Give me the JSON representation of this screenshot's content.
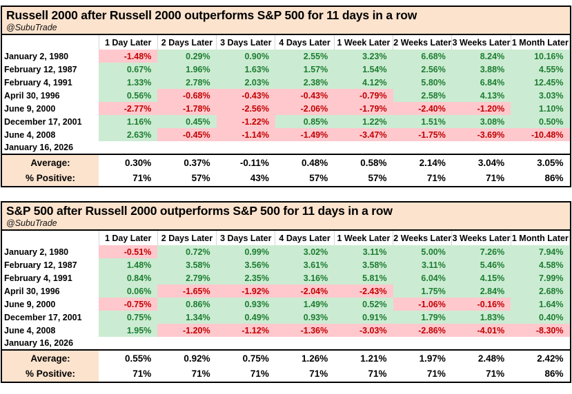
{
  "palette": {
    "panel_header_bg": "#fce3cd",
    "summary_label_bg": "#fce3cd",
    "positive_bg": "#cbecd2",
    "positive_text": "#1d7c31",
    "negative_bg": "#ffc8cd",
    "negative_text": "#c00000",
    "border": "#000000",
    "page_background": "#ffffff"
  },
  "chart_data": [
    {
      "type": "table",
      "title": "Russell 2000 after Russell 2000 outperforms S&P 500 for 11 days in a row",
      "subtitle": "@SubuTrade",
      "columns": [
        "1 Day Later",
        "2 Days Later",
        "3 Days Later",
        "4 Days Later",
        "1 Week Later",
        "2 Weeks Later",
        "3 Weeks Later",
        "1 Month Later"
      ],
      "rows": [
        {
          "label": "January 2, 1980",
          "values": [
            "-1.48%",
            "0.29%",
            "0.90%",
            "2.55%",
            "3.23%",
            "6.68%",
            "8.24%",
            "10.16%"
          ]
        },
        {
          "label": "February 12, 1987",
          "values": [
            "0.67%",
            "1.96%",
            "1.63%",
            "1.57%",
            "1.54%",
            "2.56%",
            "3.88%",
            "4.55%"
          ]
        },
        {
          "label": "February 4, 1991",
          "values": [
            "1.33%",
            "2.78%",
            "2.03%",
            "2.38%",
            "4.12%",
            "5.80%",
            "6.84%",
            "12.45%"
          ]
        },
        {
          "label": "April 30, 1996",
          "values": [
            "0.56%",
            "-0.68%",
            "-0.43%",
            "-0.43%",
            "-0.79%",
            "2.58%",
            "4.13%",
            "3.03%"
          ]
        },
        {
          "label": "June 9, 2000",
          "values": [
            "-2.77%",
            "-1.78%",
            "-2.56%",
            "-2.06%",
            "-1.79%",
            "-2.40%",
            "-1.20%",
            "1.10%"
          ]
        },
        {
          "label": "December 17, 2001",
          "values": [
            "1.16%",
            "0.45%",
            "-1.22%",
            "0.85%",
            "1.22%",
            "1.51%",
            "3.08%",
            "0.50%"
          ]
        },
        {
          "label": "June 4, 2008",
          "values": [
            "2.63%",
            "-0.45%",
            "-1.14%",
            "-1.49%",
            "-3.47%",
            "-1.75%",
            "-3.69%",
            "-10.48%"
          ]
        },
        {
          "label": "January 16, 2026",
          "values": [
            "",
            "",
            "",
            "",
            "",
            "",
            "",
            ""
          ]
        }
      ],
      "summary": [
        {
          "label": "Average:",
          "values": [
            "0.30%",
            "0.37%",
            "-0.11%",
            "0.48%",
            "0.58%",
            "2.14%",
            "3.04%",
            "3.05%"
          ]
        },
        {
          "label": "% Positive:",
          "values": [
            "71%",
            "57%",
            "43%",
            "57%",
            "57%",
            "71%",
            "71%",
            "86%"
          ]
        }
      ]
    },
    {
      "type": "table",
      "title": "S&P 500 after Russell 2000 outperforms S&P 500 for 11 days in a row",
      "subtitle": "@SubuTrade",
      "columns": [
        "1 Day Later",
        "2 Days Later",
        "3 Days Later",
        "4 Days Later",
        "1 Week Later",
        "2 Weeks Later",
        "3 Weeks Later",
        "1 Month Later"
      ],
      "rows": [
        {
          "label": "January 2, 1980",
          "values": [
            "-0.51%",
            "0.72%",
            "0.99%",
            "3.02%",
            "3.11%",
            "5.00%",
            "7.26%",
            "7.94%"
          ]
        },
        {
          "label": "February 12, 1987",
          "values": [
            "1.48%",
            "3.58%",
            "3.56%",
            "3.61%",
            "3.58%",
            "3.11%",
            "5.46%",
            "4.58%"
          ]
        },
        {
          "label": "February 4, 1991",
          "values": [
            "0.84%",
            "2.79%",
            "2.35%",
            "3.16%",
            "5.81%",
            "6.04%",
            "4.15%",
            "7.99%"
          ]
        },
        {
          "label": "April 30, 1996",
          "values": [
            "0.06%",
            "-1.65%",
            "-1.92%",
            "-2.04%",
            "-2.43%",
            "1.75%",
            "2.84%",
            "2.68%"
          ]
        },
        {
          "label": "June 9, 2000",
          "values": [
            "-0.75%",
            "0.86%",
            "0.93%",
            "1.49%",
            "0.52%",
            "-1.06%",
            "-0.16%",
            "1.64%"
          ]
        },
        {
          "label": "December 17, 2001",
          "values": [
            "0.75%",
            "1.34%",
            "0.49%",
            "0.93%",
            "0.91%",
            "1.79%",
            "1.83%",
            "0.40%"
          ]
        },
        {
          "label": "June 4, 2008",
          "values": [
            "1.95%",
            "-1.20%",
            "-1.12%",
            "-1.36%",
            "-3.03%",
            "-2.86%",
            "-4.01%",
            "-8.30%"
          ]
        },
        {
          "label": "January 16, 2026",
          "values": [
            "",
            "",
            "",
            "",
            "",
            "",
            "",
            ""
          ]
        }
      ],
      "summary": [
        {
          "label": "Average:",
          "values": [
            "0.55%",
            "0.92%",
            "0.75%",
            "1.26%",
            "1.21%",
            "1.97%",
            "2.48%",
            "2.42%"
          ]
        },
        {
          "label": "% Positive:",
          "values": [
            "71%",
            "71%",
            "71%",
            "71%",
            "71%",
            "71%",
            "71%",
            "86%"
          ]
        }
      ]
    }
  ]
}
